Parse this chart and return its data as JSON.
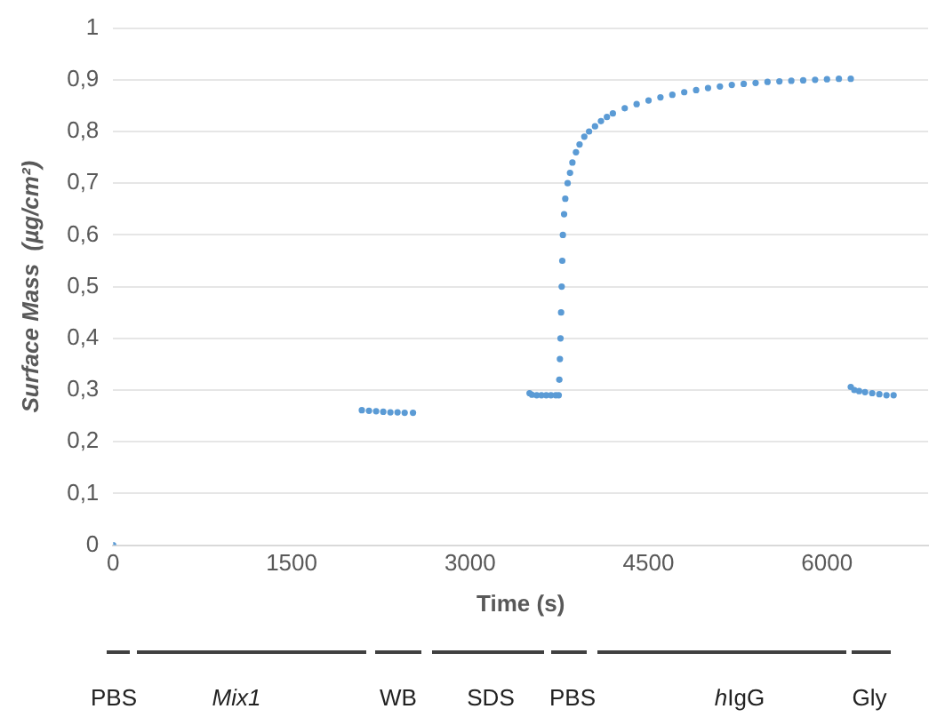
{
  "chart_data": {
    "type": "scatter",
    "xlabel": "Time (s)",
    "ylabel": "Surface Mass  (µg/cm²)",
    "marker": "circle",
    "grid": "y",
    "legend": false,
    "xlim": [
      0,
      6850
    ],
    "xticks": [
      0,
      1500,
      3000,
      4500,
      6000
    ],
    "ylim": [
      0,
      1
    ],
    "yticks": [
      0,
      {
        "value": 0.1,
        "label": "0,1"
      },
      {
        "value": 0.2,
        "label": "0,2"
      },
      {
        "value": 0.3,
        "label": "0,3"
      },
      {
        "value": 0.4,
        "label": "0,4"
      },
      {
        "value": 0.5,
        "label": "0,5"
      },
      {
        "value": 0.6,
        "label": "0,6"
      },
      {
        "value": 0.7,
        "label": "0,7"
      },
      {
        "value": 0.8,
        "label": "0,8"
      },
      {
        "value": 0.9,
        "label": "0,9"
      },
      1
    ],
    "annotations": [
      "PBS",
      "Mix1",
      "WB",
      "SDS",
      "PBS",
      "hIgG",
      "Gly"
    ],
    "series": [
      {
        "color": "#5b9bd5",
        "x": [
          0,
          2090,
          2150,
          2210,
          2270,
          2330,
          2390,
          2450,
          2520,
          3500,
          3520,
          3560,
          3600,
          3640,
          3680,
          3720,
          3745,
          3750,
          3755,
          3760,
          3765,
          3770,
          3775,
          3780,
          3790,
          3800,
          3820,
          3840,
          3860,
          3890,
          3920,
          3960,
          4000,
          4050,
          4100,
          4150,
          4200,
          4300,
          4400,
          4500,
          4600,
          4700,
          4800,
          4900,
          5000,
          5100,
          5200,
          5300,
          5400,
          5500,
          5600,
          5700,
          5800,
          5900,
          6000,
          6100,
          6200,
          6200,
          6230,
          6270,
          6320,
          6380,
          6440,
          6500,
          6560
        ],
        "values": [
          0,
          0.261,
          0.26,
          0.259,
          0.258,
          0.257,
          0.257,
          0.256,
          0.256,
          0.294,
          0.291,
          0.29,
          0.29,
          0.29,
          0.29,
          0.29,
          0.29,
          0.32,
          0.36,
          0.4,
          0.45,
          0.5,
          0.55,
          0.6,
          0.64,
          0.67,
          0.7,
          0.72,
          0.74,
          0.76,
          0.775,
          0.79,
          0.8,
          0.81,
          0.82,
          0.828,
          0.835,
          0.845,
          0.853,
          0.86,
          0.866,
          0.871,
          0.876,
          0.88,
          0.884,
          0.887,
          0.89,
          0.892,
          0.894,
          0.896,
          0.897,
          0.898,
          0.899,
          0.9,
          0.901,
          0.902,
          0.902,
          0.306,
          0.3,
          0.298,
          0.296,
          0.294,
          0.292,
          0.29,
          0.29
        ]
      }
    ]
  }
}
